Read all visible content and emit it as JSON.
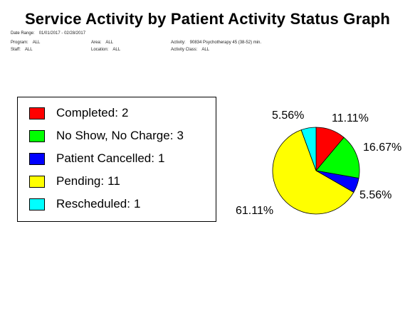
{
  "header": {
    "title": "Service Activity by Patient Activity Status Graph",
    "date_range_label": "Date Range:",
    "date_range_value": "01/01/2017 - 02/28/2017",
    "program_label": "Program:",
    "program_value": "ALL",
    "staff_label": "Staff:",
    "staff_value": "ALL",
    "area_label": "Area:",
    "area_value": "ALL",
    "location_label": "Location:",
    "location_value": "ALL",
    "activity_label": "Activity:",
    "activity_value": "90834 Psychotherapy 45 (38-52) min.",
    "activity_class_label": "Activity Class:",
    "activity_class_value": "ALL"
  },
  "chart_data": {
    "type": "pie",
    "title": "Service Activity by Patient Activity Status Graph",
    "legend_position": "left",
    "slices": [
      {
        "name": "Completed",
        "value": 2,
        "percent_label": "11.11%",
        "color": "#ff0000"
      },
      {
        "name": "No Show, No Charge",
        "value": 3,
        "percent_label": "16.67%",
        "color": "#00ff00"
      },
      {
        "name": "Patient Cancelled",
        "value": 1,
        "percent_label": "5.56%",
        "color": "#0000ff"
      },
      {
        "name": "Pending",
        "value": 11,
        "percent_label": "61.11%",
        "color": "#ffff00"
      },
      {
        "name": "Rescheduled",
        "value": 1,
        "percent_label": "5.56%",
        "color": "#00ffff"
      }
    ]
  }
}
